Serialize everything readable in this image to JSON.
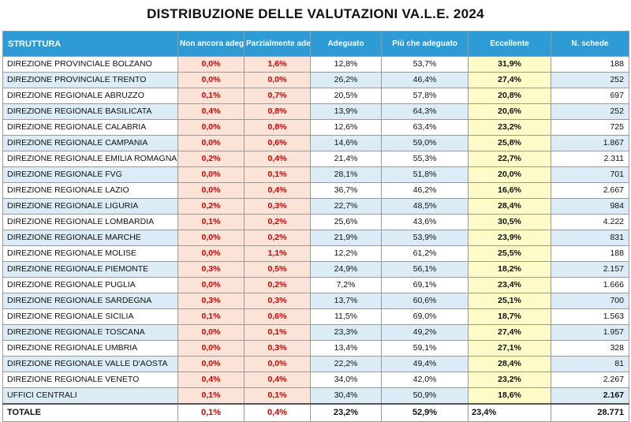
{
  "title": "DISTRIBUZIONE DELLE VALUTAZIONI VA.L.E. 2024",
  "chart_data": {
    "type": "table",
    "title": "DISTRIBUZIONE DELLE VALUTAZIONI VA.L.E. 2024",
    "columns": [
      {
        "key": "struttura",
        "label": "STRUTTURA"
      },
      {
        "key": "non_ancora",
        "label": "Non ancora adeguato"
      },
      {
        "key": "parzialmente",
        "label": "Parzialmente adeguato"
      },
      {
        "key": "adeguato",
        "label": "Adeguato"
      },
      {
        "key": "piu_che",
        "label": "Più che adeguato"
      },
      {
        "key": "eccellente",
        "label": "Eccellente"
      },
      {
        "key": "n_schede",
        "label": "N. schede"
      }
    ],
    "rows": [
      [
        "DIREZIONE PROVINCIALE BOLZANO",
        "0,0%",
        "1,6%",
        "12,8%",
        "53,7%",
        "31,9%",
        "188"
      ],
      [
        "DIREZIONE PROVINCIALE TRENTO",
        "0,0%",
        "0,0%",
        "26,2%",
        "46,4%",
        "27,4%",
        "252"
      ],
      [
        "DIREZIONE REGIONALE ABRUZZO",
        "0,1%",
        "0,7%",
        "20,5%",
        "57,8%",
        "20,8%",
        "697"
      ],
      [
        "DIREZIONE REGIONALE BASILICATA",
        "0,4%",
        "0,8%",
        "13,9%",
        "64,3%",
        "20,6%",
        "252"
      ],
      [
        "DIREZIONE REGIONALE CALABRIA",
        "0,0%",
        "0,8%",
        "12,6%",
        "63,4%",
        "23,2%",
        "725"
      ],
      [
        "DIREZIONE REGIONALE CAMPANIA",
        "0,0%",
        "0,6%",
        "14,6%",
        "59,0%",
        "25,8%",
        "1.867"
      ],
      [
        "DIREZIONE REGIONALE EMILIA ROMAGNA",
        "0,2%",
        "0,4%",
        "21,4%",
        "55,3%",
        "22,7%",
        "2.311"
      ],
      [
        "DIREZIONE REGIONALE FVG",
        "0,0%",
        "0,1%",
        "28,1%",
        "51,8%",
        "20,0%",
        "701"
      ],
      [
        "DIREZIONE REGIONALE LAZIO",
        "0,0%",
        "0,4%",
        "36,7%",
        "46,2%",
        "16,6%",
        "2.667"
      ],
      [
        "DIREZIONE REGIONALE LIGURIA",
        "0,2%",
        "0,3%",
        "22,7%",
        "48,5%",
        "28,4%",
        "984"
      ],
      [
        "DIREZIONE REGIONALE LOMBARDIA",
        "0,1%",
        "0,2%",
        "25,6%",
        "43,6%",
        "30,5%",
        "4.222"
      ],
      [
        "DIREZIONE REGIONALE MARCHE",
        "0,0%",
        "0,2%",
        "21,9%",
        "53,9%",
        "23,9%",
        "831"
      ],
      [
        "DIREZIONE REGIONALE MOLISE",
        "0,0%",
        "1,1%",
        "12,2%",
        "61,2%",
        "25,5%",
        "188"
      ],
      [
        "DIREZIONE REGIONALE PIEMONTE",
        "0,3%",
        "0,5%",
        "24,9%",
        "56,1%",
        "18,2%",
        "2.157"
      ],
      [
        "DIREZIONE REGIONALE PUGLIA",
        "0,0%",
        "0,2%",
        "7,2%",
        "69,1%",
        "23,4%",
        "1.666"
      ],
      [
        "DIREZIONE REGIONALE SARDEGNA",
        "0,3%",
        "0,3%",
        "13,7%",
        "60,6%",
        "25,1%",
        "700"
      ],
      [
        "DIREZIONE REGIONALE SICILIA",
        "0,1%",
        "0,6%",
        "11,5%",
        "69,0%",
        "18,7%",
        "1.563"
      ],
      [
        "DIREZIONE REGIONALE TOSCANA",
        "0,0%",
        "0,1%",
        "23,3%",
        "49,2%",
        "27,4%",
        "1.957"
      ],
      [
        "DIREZIONE REGIONALE UMBRIA",
        "0,0%",
        "0,3%",
        "13,4%",
        "59,1%",
        "27,1%",
        "328"
      ],
      [
        "DIREZIONE REGIONALE VALLE D'AOSTA",
        "0,0%",
        "0,0%",
        "22,2%",
        "49,4%",
        "28,4%",
        "81"
      ],
      [
        "DIREZIONE REGIONALE VENETO",
        "0,4%",
        "0,4%",
        "34,0%",
        "42,0%",
        "23,2%",
        "2.267"
      ],
      [
        "UFFICI CENTRALI",
        "0,1%",
        "0,1%",
        "30,4%",
        "50,9%",
        "18,6%",
        "2.167"
      ]
    ],
    "total": [
      "TOTALE",
      "0,1%",
      "0,4%",
      "23,2%",
      "52,9%",
      "23,4%",
      "28.771"
    ]
  },
  "colors": {
    "header_bg": "#2c9bd6",
    "header_text": "#ffffff",
    "alt_row": "#dbecf6",
    "red_cols_bg": "#fbe3d7",
    "red_text": "#d40000",
    "eccellente_bg": "#fffbc8"
  }
}
